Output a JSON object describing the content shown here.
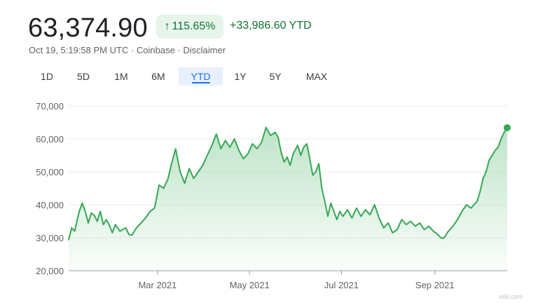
{
  "quote": {
    "price": "63,374.90",
    "percent_change": "115.65%",
    "percent_arrow_icon": "arrow-up-icon",
    "change_text": "+33,986.60 YTD",
    "meta_text": "Oct 19, 5:19:58 PM UTC · Coinbase · Disclaimer",
    "positive_color": "#137333",
    "badge_bg": "#e6f4ea"
  },
  "range_tabs": [
    {
      "label": "1D",
      "active": false
    },
    {
      "label": "5D",
      "active": false
    },
    {
      "label": "1M",
      "active": false
    },
    {
      "label": "6M",
      "active": false
    },
    {
      "label": "YTD",
      "active": true
    },
    {
      "label": "1Y",
      "active": false
    },
    {
      "label": "5Y",
      "active": false
    },
    {
      "label": "MAX",
      "active": false
    }
  ],
  "watermark": "xiilii.com",
  "chart_data": {
    "type": "area",
    "title": "",
    "xlabel": "",
    "ylabel": "",
    "ylim": [
      20000,
      70000
    ],
    "yticks": [
      20000,
      30000,
      40000,
      50000,
      60000,
      70000
    ],
    "ytick_labels": [
      "20,000",
      "30,000",
      "40,000",
      "50,000",
      "60,000",
      "70,000"
    ],
    "xlim": [
      "2021-01-01",
      "2021-10-19"
    ],
    "xticks": [
      "2021-03-01",
      "2021-05-01",
      "2021-07-01",
      "2021-09-01"
    ],
    "xtick_labels": [
      "Mar 2021",
      "May 2021",
      "Jul 2021",
      "Sep 2021"
    ],
    "grid": "horizontal",
    "line_color": "#34a853",
    "fill_top_color": "#a8dab5",
    "points": [
      [
        "2021-01-01",
        29400
      ],
      [
        "2021-01-03",
        33000
      ],
      [
        "2021-01-05",
        32000
      ],
      [
        "2021-01-08",
        38000
      ],
      [
        "2021-01-10",
        40500
      ],
      [
        "2021-01-12",
        38000
      ],
      [
        "2021-01-14",
        34500
      ],
      [
        "2021-01-16",
        37500
      ],
      [
        "2021-01-18",
        36800
      ],
      [
        "2021-01-20",
        35000
      ],
      [
        "2021-01-22",
        38000
      ],
      [
        "2021-01-24",
        34000
      ],
      [
        "2021-01-26",
        35500
      ],
      [
        "2021-01-28",
        33800
      ],
      [
        "2021-01-30",
        31500
      ],
      [
        "2021-02-01",
        34000
      ],
      [
        "2021-02-04",
        32000
      ],
      [
        "2021-02-08",
        33000
      ],
      [
        "2021-02-10",
        31000
      ],
      [
        "2021-02-12",
        30800
      ],
      [
        "2021-02-15",
        33000
      ],
      [
        "2021-02-18",
        34500
      ],
      [
        "2021-02-21",
        36000
      ],
      [
        "2021-02-24",
        38000
      ],
      [
        "2021-02-27",
        39000
      ],
      [
        "2021-03-02",
        46000
      ],
      [
        "2021-03-05",
        45000
      ],
      [
        "2021-03-08",
        48000
      ],
      [
        "2021-03-10",
        52000
      ],
      [
        "2021-03-13",
        57000
      ],
      [
        "2021-03-16",
        50000
      ],
      [
        "2021-03-19",
        46500
      ],
      [
        "2021-03-22",
        51000
      ],
      [
        "2021-03-25",
        48000
      ],
      [
        "2021-03-28",
        50000
      ],
      [
        "2021-03-31",
        52000
      ],
      [
        "2021-04-03",
        55000
      ],
      [
        "2021-04-06",
        58000
      ],
      [
        "2021-04-09",
        61500
      ],
      [
        "2021-04-12",
        57000
      ],
      [
        "2021-04-15",
        59500
      ],
      [
        "2021-04-18",
        57500
      ],
      [
        "2021-04-21",
        60000
      ],
      [
        "2021-04-24",
        56500
      ],
      [
        "2021-04-27",
        54000
      ],
      [
        "2021-04-30",
        55500
      ],
      [
        "2021-05-03",
        58500
      ],
      [
        "2021-05-06",
        57000
      ],
      [
        "2021-05-09",
        59000
      ],
      [
        "2021-05-12",
        63500
      ],
      [
        "2021-05-15",
        61000
      ],
      [
        "2021-05-18",
        62000
      ],
      [
        "2021-05-20",
        60500
      ],
      [
        "2021-05-22",
        56000
      ],
      [
        "2021-05-24",
        53000
      ],
      [
        "2021-05-26",
        54500
      ],
      [
        "2021-05-28",
        52000
      ],
      [
        "2021-05-30",
        55500
      ],
      [
        "2021-06-02",
        58000
      ],
      [
        "2021-06-04",
        55000
      ],
      [
        "2021-06-06",
        57500
      ],
      [
        "2021-06-08",
        58500
      ],
      [
        "2021-06-10",
        54000
      ],
      [
        "2021-06-12",
        49000
      ],
      [
        "2021-06-14",
        50000
      ],
      [
        "2021-06-16",
        52500
      ],
      [
        "2021-06-18",
        45000
      ],
      [
        "2021-06-20",
        41000
      ],
      [
        "2021-06-22",
        36500
      ],
      [
        "2021-06-24",
        40500
      ],
      [
        "2021-06-26",
        38000
      ],
      [
        "2021-06-28",
        35500
      ],
      [
        "2021-06-30",
        38000
      ],
      [
        "2021-07-02",
        36500
      ],
      [
        "2021-07-05",
        38500
      ],
      [
        "2021-07-08",
        36000
      ],
      [
        "2021-07-11",
        39000
      ],
      [
        "2021-07-14",
        36500
      ],
      [
        "2021-07-17",
        38500
      ],
      [
        "2021-07-20",
        37000
      ],
      [
        "2021-07-23",
        40000
      ],
      [
        "2021-07-26",
        36000
      ],
      [
        "2021-07-29",
        33000
      ],
      [
        "2021-08-01",
        34500
      ],
      [
        "2021-08-04",
        31500
      ],
      [
        "2021-08-07",
        32500
      ],
      [
        "2021-08-10",
        35500
      ],
      [
        "2021-08-13",
        34000
      ],
      [
        "2021-08-16",
        35000
      ],
      [
        "2021-08-19",
        33500
      ],
      [
        "2021-08-22",
        34500
      ],
      [
        "2021-08-25",
        32500
      ],
      [
        "2021-08-28",
        33500
      ],
      [
        "2021-08-31",
        32000
      ],
      [
        "2021-09-03",
        31000
      ],
      [
        "2021-09-05",
        30000
      ],
      [
        "2021-09-07",
        29900
      ],
      [
        "2021-09-10",
        32000
      ],
      [
        "2021-09-13",
        33500
      ],
      [
        "2021-09-16",
        35500
      ],
      [
        "2021-09-19",
        38000
      ],
      [
        "2021-09-22",
        40000
      ],
      [
        "2021-09-25",
        39000
      ],
      [
        "2021-09-28",
        40500
      ],
      [
        "2021-09-29",
        41000
      ]
    ],
    "last_point": [
      "2021-10-19",
      63374.9
    ]
  }
}
